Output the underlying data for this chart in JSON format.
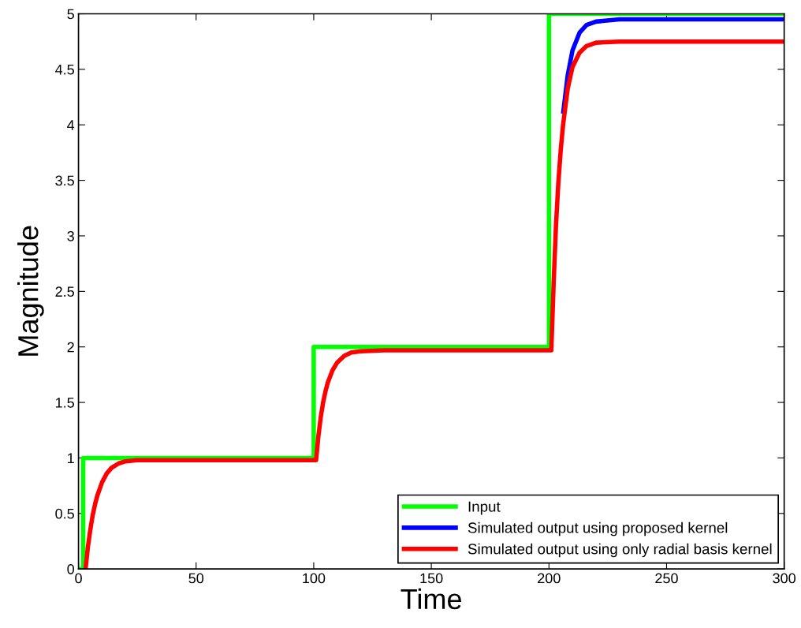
{
  "chart_data": {
    "type": "line",
    "xlabel": "Time",
    "ylabel": "Magnitude",
    "xlim": [
      0,
      300
    ],
    "ylim": [
      0,
      5
    ],
    "xticks": [
      0,
      50,
      100,
      150,
      200,
      250,
      300
    ],
    "yticks": [
      0,
      0.5,
      1,
      1.5,
      2,
      2.5,
      3,
      3.5,
      4,
      4.5,
      5
    ],
    "grid": false,
    "legend": "bottom right",
    "marker": "none",
    "line_style": "solid",
    "series": [
      {
        "name": "Input",
        "color": "#00ff00",
        "x": [
          0,
          2,
          2,
          100,
          100,
          200,
          200,
          300
        ],
        "values": [
          0,
          0,
          1,
          1,
          2,
          2,
          5,
          5
        ]
      },
      {
        "name": "Simulated output using proposed kernel",
        "color": "#0000ff",
        "x": [
          206,
          208,
          210,
          213,
          216,
          220,
          230,
          300
        ],
        "values": [
          4.1,
          4.45,
          4.67,
          4.83,
          4.9,
          4.93,
          4.95,
          4.95
        ]
      },
      {
        "name": "Simulated output using only radial basis kernel",
        "color": "#ff0000",
        "x": [
          3,
          4,
          5,
          6,
          7,
          8,
          10,
          12,
          14,
          17,
          20,
          25,
          30,
          100,
          101,
          102,
          103,
          104,
          105,
          106,
          108,
          110,
          113,
          116,
          120,
          130,
          200,
          201,
          202,
          203,
          204,
          205,
          206,
          208,
          210,
          213,
          216,
          220,
          230,
          300
        ],
        "values": [
          0,
          0.2,
          0.35,
          0.48,
          0.58,
          0.66,
          0.78,
          0.86,
          0.91,
          0.95,
          0.97,
          0.98,
          0.98,
          0.98,
          0.98,
          1.2,
          1.37,
          1.5,
          1.6,
          1.68,
          1.79,
          1.86,
          1.92,
          1.95,
          1.96,
          1.97,
          1.97,
          1.97,
          2.58,
          3.1,
          3.48,
          3.77,
          4.0,
          4.33,
          4.52,
          4.65,
          4.71,
          4.74,
          4.75,
          4.75
        ]
      }
    ]
  }
}
